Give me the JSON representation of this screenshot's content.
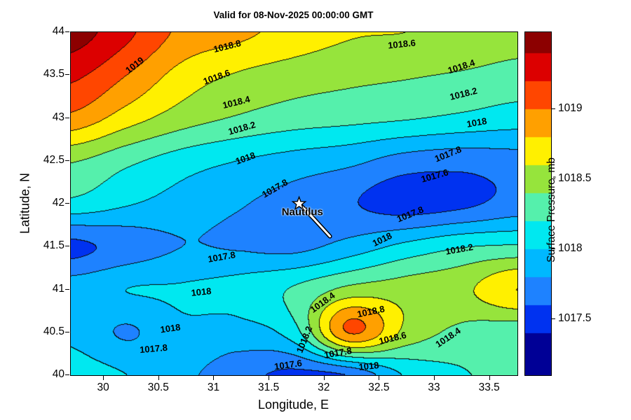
{
  "chart_data": {
    "type": "filled_contour",
    "title": "Valid for 08-Nov-2025 00:00:00 GMT",
    "xlabel": "Longitude, E",
    "ylabel": "Latitude, N",
    "x_range": [
      29.7,
      33.75
    ],
    "y_range": [
      40,
      44
    ],
    "xticks": [
      {
        "v": 30,
        "t": "30"
      },
      {
        "v": 30.5,
        "t": "30.5"
      },
      {
        "v": 31,
        "t": "31"
      },
      {
        "v": 31.5,
        "t": "31.5"
      },
      {
        "v": 32,
        "t": "32"
      },
      {
        "v": 32.5,
        "t": "32.5"
      },
      {
        "v": 33,
        "t": "33"
      },
      {
        "v": 33.5,
        "t": "33.5"
      }
    ],
    "yticks": [
      {
        "v": 44,
        "t": "44"
      },
      {
        "v": 43.5,
        "t": "43.5"
      },
      {
        "v": 43,
        "t": "43"
      },
      {
        "v": 42.5,
        "t": "42.5"
      },
      {
        "v": 42,
        "t": "42"
      },
      {
        "v": 41.5,
        "t": "41.5"
      },
      {
        "v": 41,
        "t": "41"
      },
      {
        "v": 40.5,
        "t": "40.5"
      },
      {
        "v": 40,
        "t": "40"
      }
    ],
    "level_min": 1017.2,
    "level_step": 0.2,
    "palette": [
      "#000096",
      "#0032f0",
      "#1e82ff",
      "#00b8ff",
      "#00e8f0",
      "#55f0ac",
      "#96e43c",
      "#fff000",
      "#ffa000",
      "#ff4600",
      "#dc0000",
      "#8c0000"
    ],
    "colorbar": {
      "label": "Surface Pressure, mb",
      "range": [
        1017.1,
        1019.55
      ],
      "ticks": [
        {
          "v": 1017.5,
          "t": "1017.5"
        },
        {
          "v": 1018,
          "t": "1018"
        },
        {
          "v": 1018.5,
          "t": "1018.5"
        },
        {
          "v": 1019,
          "t": "1019"
        }
      ]
    },
    "grid_lon": [
      29.7,
      30.21,
      30.71,
      31.22,
      31.73,
      32.23,
      32.74,
      33.24,
      33.75
    ],
    "grid_lat": [
      44,
      43.5,
      43,
      42.5,
      42,
      41.5,
      41,
      40.5,
      40
    ],
    "values": [
      [
        1019.5,
        1019.25,
        1018.95,
        1018.85,
        1018.72,
        1018.62,
        1018.6,
        1018.55,
        1018.48
      ],
      [
        1019.25,
        1019.0,
        1018.72,
        1018.58,
        1018.5,
        1018.45,
        1018.42,
        1018.38,
        1018.33
      ],
      [
        1018.95,
        1018.7,
        1018.5,
        1018.38,
        1018.3,
        1018.26,
        1018.22,
        1018.16,
        1018.1
      ],
      [
        1018.42,
        1018.25,
        1018.1,
        1018.0,
        1017.92,
        1017.85,
        1017.72,
        1017.68,
        1017.72
      ],
      [
        1018.15,
        1018.02,
        1017.92,
        1017.82,
        1017.72,
        1017.62,
        1017.5,
        1017.55,
        1017.68
      ],
      [
        1017.55,
        1017.68,
        1017.8,
        1017.78,
        1017.74,
        1017.88,
        1018.05,
        1018.18,
        1018.22
      ],
      [
        1017.92,
        1018.0,
        1018.02,
        1018.08,
        1018.22,
        1018.45,
        1018.5,
        1018.55,
        1018.8
      ],
      [
        1017.95,
        1017.78,
        1017.95,
        1017.92,
        1018.12,
        1019.02,
        1018.55,
        1018.35,
        1018.28
      ],
      [
        1018.1,
        1018.0,
        1017.85,
        1017.68,
        1017.55,
        1017.62,
        1018.02,
        1018.18,
        1018.25
      ]
    ],
    "contour_labels": [
      {
        "t": "1019",
        "x": 30.28,
        "y": 43.62,
        "r": -38
      },
      {
        "t": "1018.8",
        "x": 31.12,
        "y": 43.84,
        "r": -14
      },
      {
        "t": "1018.6",
        "x": 31.02,
        "y": 43.48,
        "r": -20
      },
      {
        "t": "1018.4",
        "x": 31.2,
        "y": 43.18,
        "r": -14
      },
      {
        "t": "1018.2",
        "x": 31.25,
        "y": 42.88,
        "r": -16
      },
      {
        "t": "1018",
        "x": 31.28,
        "y": 42.53,
        "r": -20
      },
      {
        "t": "1017.8",
        "x": 31.55,
        "y": 42.18,
        "r": -30
      },
      {
        "t": "1018.6",
        "x": 32.7,
        "y": 43.86,
        "r": -6
      },
      {
        "t": "1018.4",
        "x": 33.24,
        "y": 43.6,
        "r": -18
      },
      {
        "t": "1018.2",
        "x": 33.26,
        "y": 43.28,
        "r": -14
      },
      {
        "t": "1018",
        "x": 33.38,
        "y": 42.95,
        "r": -10
      },
      {
        "t": "1017.8",
        "x": 33.12,
        "y": 42.58,
        "r": -22
      },
      {
        "t": "1017.6",
        "x": 33.0,
        "y": 42.33,
        "r": -16
      },
      {
        "t": "1017.8",
        "x": 32.78,
        "y": 41.88,
        "r": -22
      },
      {
        "t": "1018",
        "x": 32.52,
        "y": 41.58,
        "r": -26
      },
      {
        "t": "1018.2",
        "x": 33.22,
        "y": 41.47,
        "r": -10
      },
      {
        "t": "1017.8",
        "x": 31.07,
        "y": 41.38,
        "r": -10
      },
      {
        "t": "1018",
        "x": 30.88,
        "y": 40.97,
        "r": -6
      },
      {
        "t": "1018.4",
        "x": 31.98,
        "y": 40.85,
        "r": -36
      },
      {
        "t": "1018.8",
        "x": 32.42,
        "y": 40.74,
        "r": -12
      },
      {
        "t": "1018",
        "x": 30.6,
        "y": 40.55,
        "r": -8
      },
      {
        "t": "1017.8",
        "x": 30.45,
        "y": 40.31,
        "r": -5
      },
      {
        "t": "1018.2",
        "x": 31.82,
        "y": 40.42,
        "r": -68
      },
      {
        "t": "1018.6",
        "x": 32.62,
        "y": 40.43,
        "r": -14
      },
      {
        "t": "1018.4",
        "x": 33.12,
        "y": 40.44,
        "r": -34
      },
      {
        "t": "1017.6",
        "x": 31.67,
        "y": 40.12,
        "r": -8
      },
      {
        "t": "1017.8",
        "x": 32.12,
        "y": 40.26,
        "r": -10
      },
      {
        "t": "1018",
        "x": 32.4,
        "y": 40.11,
        "r": -6
      }
    ],
    "marker": {
      "label": "Nautilus",
      "lon": 31.77,
      "lat": 42.0,
      "label_lon": 31.8,
      "label_lat": 41.9,
      "track": [
        [
          31.77,
          42.0
        ],
        [
          31.9,
          41.83
        ],
        [
          32.05,
          41.62
        ]
      ]
    }
  }
}
